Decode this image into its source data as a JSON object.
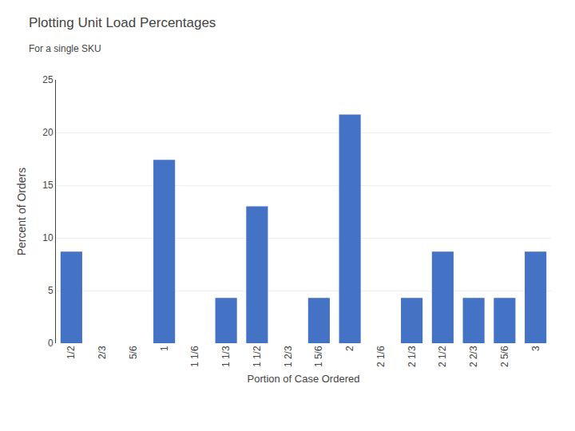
{
  "chart_data": {
    "type": "bar",
    "title": "Plotting Unit Load Percentages",
    "subtitle": "For a single SKU",
    "categories": [
      "1/2",
      "2/3",
      "5/6",
      "1",
      "1 1/6",
      "1 1/3",
      "1 1/2",
      "1 2/3",
      "1 5/6",
      "2",
      "2 1/6",
      "2 1/3",
      "2 1/2",
      "2 2/3",
      "2 5/6",
      "3"
    ],
    "values": [
      8.7,
      0,
      0,
      17.4,
      0,
      4.3,
      13.0,
      0,
      4.3,
      21.7,
      0,
      4.3,
      8.7,
      4.3,
      4.3,
      8.7
    ],
    "color": "#4472C4",
    "xlabel": "Portion of Case Ordered",
    "ylabel": "Percent of Orders",
    "ylim": [
      0,
      25
    ],
    "yticks": [
      0,
      5,
      10,
      15,
      20,
      25
    ],
    "grid": true
  }
}
